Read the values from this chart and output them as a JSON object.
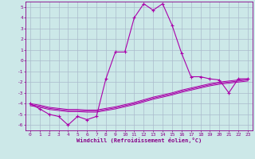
{
  "xlabel": "Windchill (Refroidissement éolien,°C)",
  "ylabel": "",
  "background_color": "#cce8e8",
  "grid_color": "#aabbcc",
  "line_color": "#aa00aa",
  "x": [
    0,
    1,
    2,
    3,
    4,
    5,
    6,
    7,
    8,
    9,
    10,
    11,
    12,
    13,
    14,
    15,
    16,
    17,
    18,
    19,
    20,
    21,
    22,
    23
  ],
  "y_main": [
    -4.0,
    -4.5,
    -5.0,
    -5.2,
    -6.0,
    -5.2,
    -5.5,
    -5.2,
    -1.7,
    0.8,
    0.8,
    4.0,
    5.3,
    4.7,
    5.3,
    3.3,
    0.7,
    -1.5,
    -1.5,
    -1.7,
    -1.8,
    -3.0,
    -1.7,
    -1.7
  ],
  "y_line1": [
    -4.0,
    -4.15,
    -4.35,
    -4.45,
    -4.55,
    -4.55,
    -4.6,
    -4.6,
    -4.45,
    -4.3,
    -4.1,
    -3.9,
    -3.65,
    -3.4,
    -3.2,
    -3.0,
    -2.75,
    -2.55,
    -2.35,
    -2.15,
    -2.0,
    -1.9,
    -1.8,
    -1.7
  ],
  "y_line2": [
    -4.1,
    -4.25,
    -4.45,
    -4.55,
    -4.65,
    -4.65,
    -4.7,
    -4.7,
    -4.55,
    -4.4,
    -4.2,
    -4.0,
    -3.75,
    -3.5,
    -3.3,
    -3.1,
    -2.85,
    -2.65,
    -2.45,
    -2.25,
    -2.1,
    -2.0,
    -1.9,
    -1.8
  ],
  "y_line3": [
    -4.2,
    -4.35,
    -4.55,
    -4.65,
    -4.75,
    -4.75,
    -4.8,
    -4.8,
    -4.65,
    -4.5,
    -4.3,
    -4.1,
    -3.85,
    -3.6,
    -3.4,
    -3.2,
    -2.95,
    -2.75,
    -2.55,
    -2.35,
    -2.2,
    -2.1,
    -2.0,
    -1.9
  ],
  "ylim": [
    -6.5,
    5.5
  ],
  "xlim": [
    -0.5,
    23.5
  ],
  "yticks": [
    -6,
    -5,
    -4,
    -3,
    -2,
    -1,
    0,
    1,
    2,
    3,
    4,
    5
  ],
  "xticks": [
    0,
    1,
    2,
    3,
    4,
    5,
    6,
    7,
    8,
    9,
    10,
    11,
    12,
    13,
    14,
    15,
    16,
    17,
    18,
    19,
    20,
    21,
    22,
    23
  ]
}
